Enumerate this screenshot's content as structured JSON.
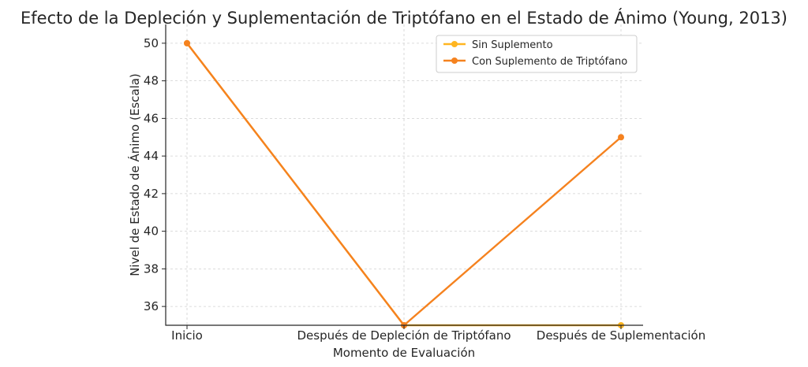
{
  "chart_data": {
    "type": "line",
    "title": "Efecto de la Depleción y Suplementación de Triptófano en el Estado de Ánimo (Young, 2013)",
    "xlabel": "Momento de Evaluación",
    "ylabel": "Nivel de Estado de Ánimo (Escala)",
    "categories": [
      "Inicio",
      "Después de Depleción de Triptófano",
      "Después de Suplementación"
    ],
    "ylim": [
      35,
      51
    ],
    "yticks": [
      36,
      38,
      40,
      42,
      44,
      46,
      48,
      50
    ],
    "grid": true,
    "legend_position": "top-right",
    "series": [
      {
        "name": "Sin Suplemento",
        "color": "#ffb520",
        "values": [
          50,
          35,
          35
        ]
      },
      {
        "name": "Con Suplemento de Triptófano",
        "color": "#f5821f",
        "values": [
          50,
          35,
          45
        ]
      }
    ]
  }
}
